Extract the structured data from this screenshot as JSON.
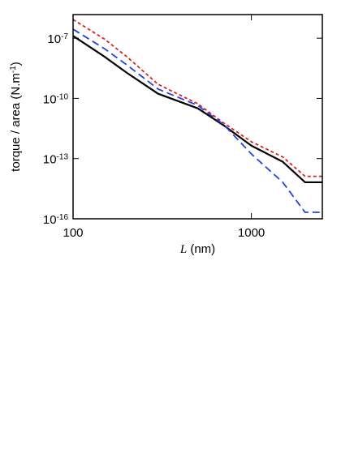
{
  "chart_data": {
    "type": "line",
    "xlabel": "L (nm)",
    "ylabel": "torque / area (N.m^-1)",
    "x": [
      100,
      150,
      200,
      300,
      500,
      700,
      1000,
      1500,
      2000,
      2500
    ],
    "series": [
      {
        "color": "#000000",
        "dash": "solid",
        "values": [
          1.3e-07,
          1.2e-08,
          1.9e-09,
          1.7e-10,
          3.2e-11,
          4.5e-12,
          4.4e-13,
          6.9e-14,
          6.6e-15,
          6.6e-15
        ]
      },
      {
        "color": "#dd2222",
        "dash": "dotted",
        "values": [
          8.5e-07,
          9e-08,
          1.2e-08,
          5e-10,
          5.4e-11,
          5.9e-12,
          6.9e-13,
          1.2e-13,
          1.3e-14,
          1.3e-14
        ]
      },
      {
        "color": "#2244dd",
        "dash": "dashed",
        "values": [
          2.8e-07,
          3e-08,
          4.7e-09,
          2.9e-10,
          4.5e-11,
          4.9e-12,
          1.7e-13,
          6.6e-15,
          2.1e-16,
          2.1e-16
        ]
      }
    ],
    "xscale": "log",
    "yscale": "log",
    "xlim": [
      100,
      2500
    ],
    "ylim": [
      1e-16,
      1.5e-06
    ],
    "xticks": [
      100,
      1000
    ],
    "yticks": [
      {
        "value": 1e-16,
        "label": "10^-16"
      },
      {
        "value": 1e-13,
        "label": "10^-13"
      },
      {
        "value": 1e-10,
        "label": "10^-10"
      },
      {
        "value": 1e-07,
        "label": "10^-7"
      }
    ]
  }
}
